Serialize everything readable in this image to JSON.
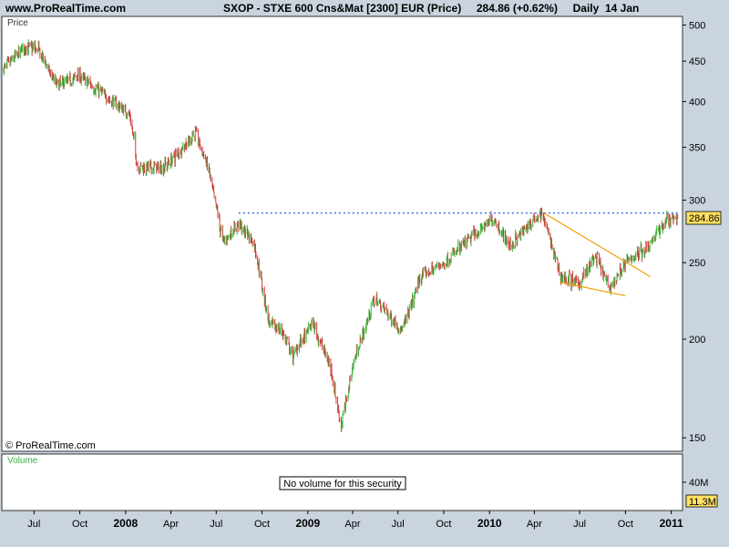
{
  "header": {
    "site": "www.ProRealTime.com",
    "instrument": "SXOP - STXE 600 Cns&Mat [2300] EUR (Price)",
    "quote": "284.86 (+0.62%)",
    "period": "Daily  14 Jan"
  },
  "panels": {
    "price_label": "Price",
    "copyright": "© ProRealTime.com",
    "volume_label": "Volume",
    "no_volume_msg": "No volume for this security"
  },
  "colors": {
    "background": "#c9d4df",
    "up": "#3cb43c",
    "down": "#d23c3c",
    "resistance": "#3a6fd8",
    "wedge": "#f0a000",
    "tag": "#ffe060"
  },
  "chart_data": {
    "type": "line",
    "title": "SXOP - STXE 600 Cns&Mat [2300] EUR (Price)",
    "scale": "log",
    "ylim": [
      145,
      510
    ],
    "y_ticks": [
      150,
      200,
      250,
      300,
      350,
      400,
      450,
      500
    ],
    "x_ticks": [
      {
        "date": "2007-07-01",
        "label": "Jul",
        "bold": false
      },
      {
        "date": "2007-10-01",
        "label": "Oct",
        "bold": false
      },
      {
        "date": "2008-01-01",
        "label": "2008",
        "bold": true
      },
      {
        "date": "2008-04-01",
        "label": "Apr",
        "bold": false
      },
      {
        "date": "2008-07-01",
        "label": "Jul",
        "bold": false
      },
      {
        "date": "2008-10-01",
        "label": "Oct",
        "bold": false
      },
      {
        "date": "2009-01-01",
        "label": "2009",
        "bold": true
      },
      {
        "date": "2009-04-01",
        "label": "Apr",
        "bold": false
      },
      {
        "date": "2009-07-01",
        "label": "Jul",
        "bold": false
      },
      {
        "date": "2009-10-01",
        "label": "Oct",
        "bold": false
      },
      {
        "date": "2010-01-01",
        "label": "2010",
        "bold": true
      },
      {
        "date": "2010-04-01",
        "label": "Apr",
        "bold": false
      },
      {
        "date": "2010-07-01",
        "label": "Jul",
        "bold": false
      },
      {
        "date": "2010-10-01",
        "label": "Oct",
        "bold": false
      },
      {
        "date": "2011-01-01",
        "label": "2011",
        "bold": true
      }
    ],
    "x_range": [
      "2007-05-01",
      "2011-01-20"
    ],
    "series": [
      {
        "values": [
          {
            "date": "2007-05-01",
            "value": 440
          },
          {
            "date": "2007-06-15",
            "value": 470
          },
          {
            "date": "2007-07-10",
            "value": 465
          },
          {
            "date": "2007-08-15",
            "value": 420
          },
          {
            "date": "2007-10-01",
            "value": 430
          },
          {
            "date": "2007-11-15",
            "value": 410
          },
          {
            "date": "2008-01-10",
            "value": 385
          },
          {
            "date": "2008-01-25",
            "value": 330
          },
          {
            "date": "2008-03-20",
            "value": 330
          },
          {
            "date": "2008-05-20",
            "value": 365
          },
          {
            "date": "2008-06-15",
            "value": 330
          },
          {
            "date": "2008-07-15",
            "value": 265
          },
          {
            "date": "2008-08-15",
            "value": 280
          },
          {
            "date": "2008-09-15",
            "value": 265
          },
          {
            "date": "2008-10-15",
            "value": 210
          },
          {
            "date": "2008-11-10",
            "value": 205
          },
          {
            "date": "2008-12-01",
            "value": 190
          },
          {
            "date": "2009-01-10",
            "value": 210
          },
          {
            "date": "2009-02-15",
            "value": 185
          },
          {
            "date": "2009-03-09",
            "value": 155
          },
          {
            "date": "2009-04-01",
            "value": 185
          },
          {
            "date": "2009-05-15",
            "value": 225
          },
          {
            "date": "2009-07-10",
            "value": 205
          },
          {
            "date": "2009-08-15",
            "value": 240
          },
          {
            "date": "2009-10-01",
            "value": 250
          },
          {
            "date": "2009-11-15",
            "value": 265
          },
          {
            "date": "2010-01-10",
            "value": 285
          },
          {
            "date": "2010-02-10",
            "value": 262
          },
          {
            "date": "2010-04-15",
            "value": 290
          },
          {
            "date": "2010-05-25",
            "value": 240
          },
          {
            "date": "2010-07-01",
            "value": 235
          },
          {
            "date": "2010-08-01",
            "value": 255
          },
          {
            "date": "2010-08-30",
            "value": 232
          },
          {
            "date": "2010-10-01",
            "value": 250
          },
          {
            "date": "2010-11-15",
            "value": 262
          },
          {
            "date": "2010-12-20",
            "value": 282
          },
          {
            "date": "2011-01-14",
            "value": 284.86
          }
        ]
      }
    ],
    "annotations": [
      {
        "type": "horizontal-line",
        "value": 289,
        "from": "2008-08-15",
        "to": "2011-01-20",
        "style": "dotted"
      },
      {
        "type": "trendline",
        "from": {
          "date": "2010-04-20",
          "value": 289
        },
        "to": {
          "date": "2010-11-20",
          "value": 240
        }
      },
      {
        "type": "trendline",
        "from": {
          "date": "2010-05-25",
          "value": 236
        },
        "to": {
          "date": "2010-10-01",
          "value": 227
        }
      }
    ],
    "last_price_label": "284.86",
    "volume_panel": {
      "y_tick_label": "40M",
      "last_value_label": "11.3M"
    }
  }
}
